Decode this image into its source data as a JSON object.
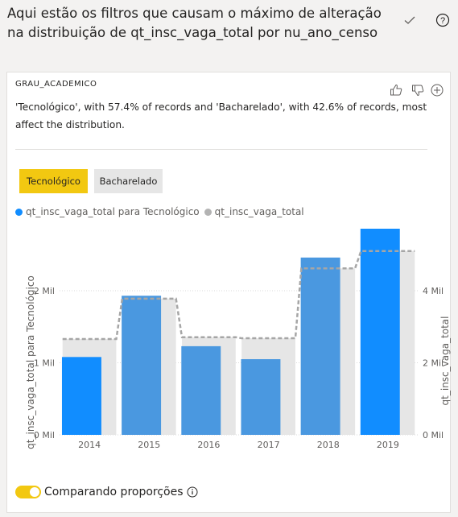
{
  "header": {
    "title": "Aqui estão os filtros que causam o máximo de alteração na distribuição de qt_insc_vaga_total por nu_ano_censo",
    "check_icon": "check-icon",
    "help_icon": "help-icon"
  },
  "card": {
    "label": "GRAU_ACADEMICO",
    "description": "'Tecnológico', with 57.4% of records and 'Bacharelado', with 42.6% of records, most affect the distribution.",
    "icons": [
      "thumbs-up-icon",
      "thumbs-down-icon",
      "add-icon"
    ],
    "tabs": [
      {
        "label": "Tecnológico",
        "selected": true
      },
      {
        "label": "Bacharelado",
        "selected": false
      }
    ],
    "legend": [
      {
        "label": "qt_insc_vaga_total para Tecnológico",
        "color": "#118dff"
      },
      {
        "label": "qt_insc_vaga_total",
        "color": "#b3b3b3"
      }
    ],
    "footer": {
      "toggle_label": "Comparando proporções",
      "toggle_on": true,
      "info_icon": "info-icon"
    }
  },
  "chart_data": {
    "type": "bar",
    "categories": [
      "2014",
      "2015",
      "2016",
      "2017",
      "2018",
      "2019"
    ],
    "series": [
      {
        "name": "qt_insc_vaga_total para Tecnológico",
        "axis": "left",
        "values": [
          1.08,
          1.93,
          1.23,
          1.05,
          2.46,
          2.86
        ],
        "color": "#118dff"
      },
      {
        "name": "qt_insc_vaga_total",
        "axis": "right",
        "values": [
          2.66,
          3.78,
          2.71,
          2.68,
          4.62,
          5.1
        ],
        "color": "#e6e6e6"
      }
    ],
    "xlabel": "nu_ano_censo",
    "ylabel": "qt_insc_vaga_total para Tecnológico",
    "y2label": "qt_insc_vaga_total",
    "ylim": [
      0,
      2.86
    ],
    "y2lim": [
      0,
      5.72
    ],
    "yticks": [
      "0 Mil",
      "1 Mil",
      "2 Mil"
    ],
    "y2ticks": [
      "0 Mil",
      "2 Mil",
      "4 Mil"
    ],
    "grid": true
  }
}
